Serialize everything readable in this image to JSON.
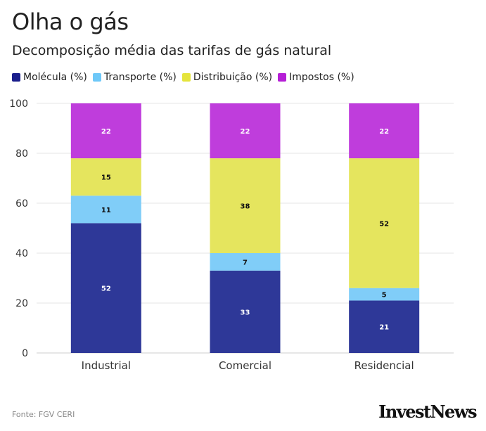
{
  "header": {
    "title": "Olha o gás",
    "subtitle": "Decomposição média das tarifas de gás natural"
  },
  "legend": {
    "items": [
      {
        "label": "Molécula (%)",
        "color": "#1a1e8c"
      },
      {
        "label": "Transporte (%)",
        "color": "#6ec8f8"
      },
      {
        "label": "Distribuição (%)",
        "color": "#e5e43c"
      },
      {
        "label": "Impostos (%)",
        "color": "#b51ed6"
      }
    ]
  },
  "chart_data": {
    "type": "bar",
    "stacked": true,
    "categories": [
      "Industrial",
      "Comercial",
      "Residencial"
    ],
    "series": [
      {
        "name": "Molécula (%)",
        "values": [
          52,
          33,
          21
        ],
        "color": "#2e3898",
        "label_color": "#ffffff"
      },
      {
        "name": "Transporte (%)",
        "values": [
          11,
          7,
          5
        ],
        "color": "#80cdf8",
        "label_color": "#111111"
      },
      {
        "name": "Distribuição (%)",
        "values": [
          15,
          38,
          52
        ],
        "color": "#e5e55e",
        "label_color": "#111111"
      },
      {
        "name": "Impostos (%)",
        "values": [
          22,
          22,
          22
        ],
        "color": "#bf3ddc",
        "label_color": "#ffffff"
      }
    ],
    "ylim": [
      0,
      100
    ],
    "yticks": [
      "0",
      "20",
      "40",
      "60",
      "80",
      "100"
    ],
    "grid": true,
    "legend_position": "top-left"
  },
  "footer": {
    "source": "Fonte: FGV CERI",
    "logo": "InvestNews"
  }
}
